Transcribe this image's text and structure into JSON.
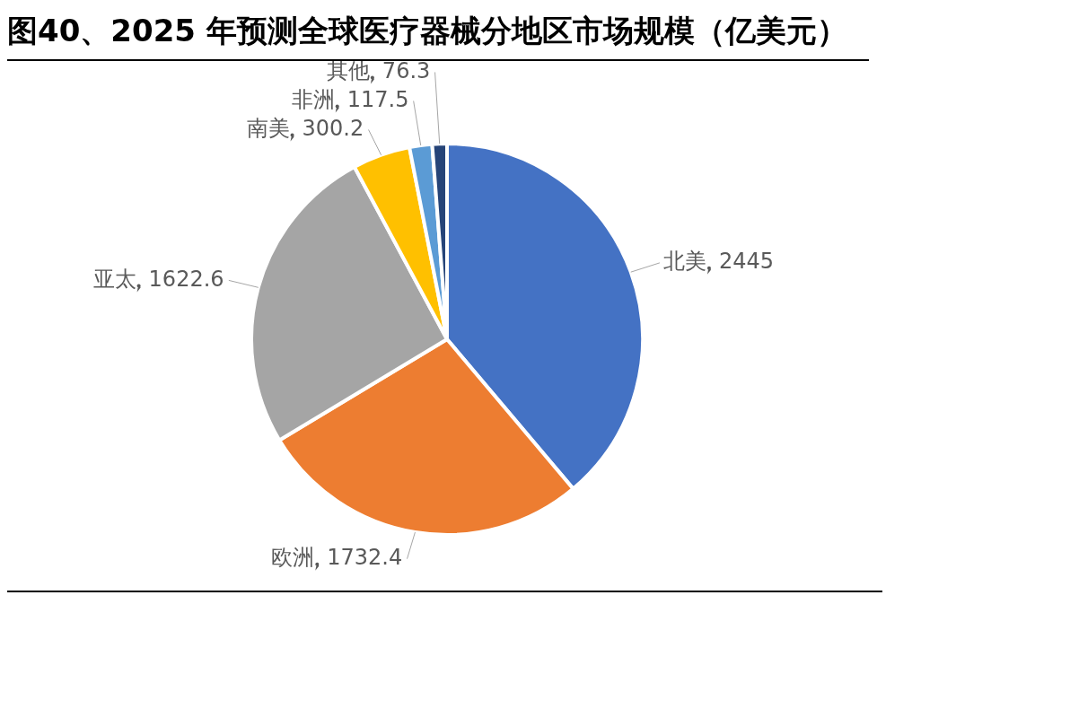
{
  "chart_data": {
    "type": "pie",
    "title": "图40、2025 年预测全球医疗器械分地区市场规模（亿美元）",
    "categories": [
      "北美",
      "欧洲",
      "亚太",
      "南美",
      "非洲",
      "其他"
    ],
    "values": [
      2445,
      1732.4,
      1622.6,
      300.2,
      117.5,
      76.3
    ],
    "colors": [
      "#4472c4",
      "#ed7d31",
      "#a5a5a5",
      "#ffc000",
      "#5b9bd5",
      "#264478"
    ],
    "data_labels": true,
    "legend": false
  }
}
